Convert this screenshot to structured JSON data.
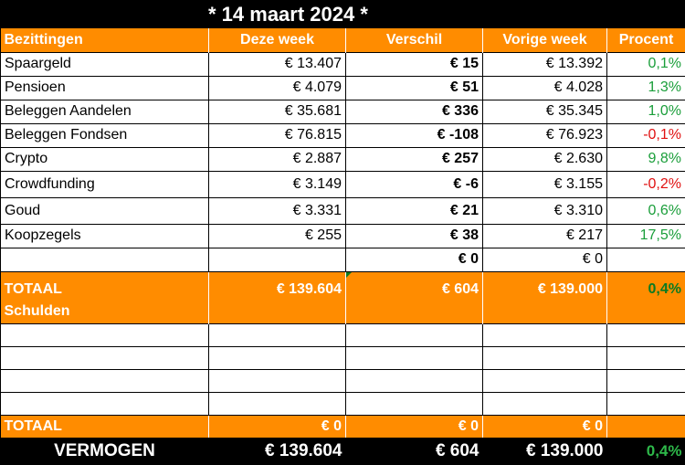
{
  "title": "* 14 maart 2024 *",
  "headers": [
    "Bezittingen",
    "Deze week",
    "Verschil",
    "Vorige week",
    "Procent"
  ],
  "assets": [
    {
      "name": "Spaargeld",
      "this_week": "€ 13.407",
      "diff": "€ 15",
      "last_week": "€ 13.392",
      "percent": "0,1%",
      "trend": "pos"
    },
    {
      "name": "Pensioen",
      "this_week": "€ 4.079",
      "diff": "€ 51",
      "last_week": "€ 4.028",
      "percent": "1,3%",
      "trend": "pos"
    },
    {
      "name": "Beleggen Aandelen",
      "this_week": "€ 35.681",
      "diff": "€ 336",
      "last_week": "€ 35.345",
      "percent": "1,0%",
      "trend": "pos"
    },
    {
      "name": "Beleggen Fondsen",
      "this_week": "€ 76.815",
      "diff": "€ -108",
      "last_week": "€ 76.923",
      "percent": "-0,1%",
      "trend": "neg"
    },
    {
      "name": "Crypto",
      "this_week": "€ 2.887",
      "diff": "€ 257",
      "last_week": "€ 2.630",
      "percent": "9,8%",
      "trend": "pos"
    },
    {
      "name": "Crowdfunding",
      "this_week": "€ 3.149",
      "diff": "€ -6",
      "last_week": "€ 3.155",
      "percent": "-0,2%",
      "trend": "neg"
    },
    {
      "name": "Goud",
      "this_week": "€ 3.331",
      "diff": "€ 21",
      "last_week": "€ 3.310",
      "percent": "0,6%",
      "trend": "pos"
    },
    {
      "name": "Koopzegels",
      "this_week": "€ 255",
      "diff": "€ 38",
      "last_week": "€ 217",
      "percent": "17,5%",
      "trend": "pos"
    },
    {
      "name": "",
      "this_week": "",
      "diff": "€ 0",
      "last_week": "€ 0",
      "percent": "",
      "trend": "pos"
    }
  ],
  "assets_total": {
    "label": "TOTAAL",
    "this_week": "€ 139.604",
    "diff": "€ 604",
    "last_week": "€ 139.000",
    "percent": "0,4%"
  },
  "debts_header": "Schulden",
  "debts_total": {
    "label": "TOTAAL",
    "this_week": "€ 0",
    "diff": "€ 0",
    "last_week": "€ 0",
    "percent": ""
  },
  "net_worth": {
    "label": "VERMOGEN",
    "this_week": "€ 139.604",
    "diff": "€ 604",
    "last_week": "€ 139.000",
    "percent": "0,4%"
  },
  "colors": {
    "header_orange": "#ff8c00",
    "positive_green": "#1a9e3a",
    "negative_red": "#e01010"
  }
}
